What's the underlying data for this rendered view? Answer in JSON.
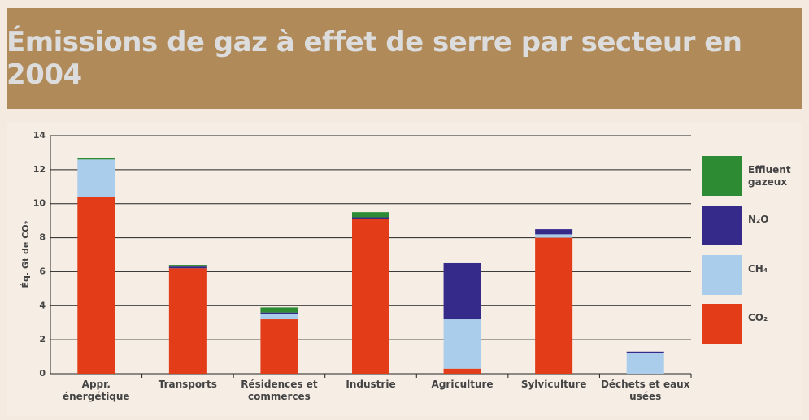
{
  "chart_data": {
    "type": "stacked_bar",
    "title": "Émissions de gaz à effet de serre par secteur en 2004",
    "y_label": "Éq. Gt de CO₂",
    "categories": [
      "Appr. énergétique",
      "Transports",
      "Résidences et commerces",
      "Industrie",
      "Agriculture",
      "Sylviculture",
      "Déchets et eaux usées"
    ],
    "series": [
      {
        "name": "CO₂",
        "color": "#e23c18",
        "values": [
          10.4,
          6.2,
          3.2,
          9.1,
          0.3,
          8.0,
          0
        ]
      },
      {
        "name": "CH₄",
        "color": "#a9cdea",
        "values": [
          2.2,
          0,
          0.3,
          0,
          2.9,
          0.2,
          1.2
        ]
      },
      {
        "name": "N₂O",
        "color": "#35298a",
        "values": [
          0,
          0.1,
          0.1,
          0.1,
          3.3,
          0.3,
          0.1
        ]
      },
      {
        "name": "Effluent gazeux",
        "color": "#2d8c33",
        "values": [
          0.1,
          0.1,
          0.3,
          0.3,
          0,
          0,
          0
        ]
      }
    ],
    "ylim": [
      0,
      14
    ],
    "yticks": [
      0,
      2,
      4,
      6,
      8,
      10,
      12,
      14
    ],
    "grid": true
  }
}
